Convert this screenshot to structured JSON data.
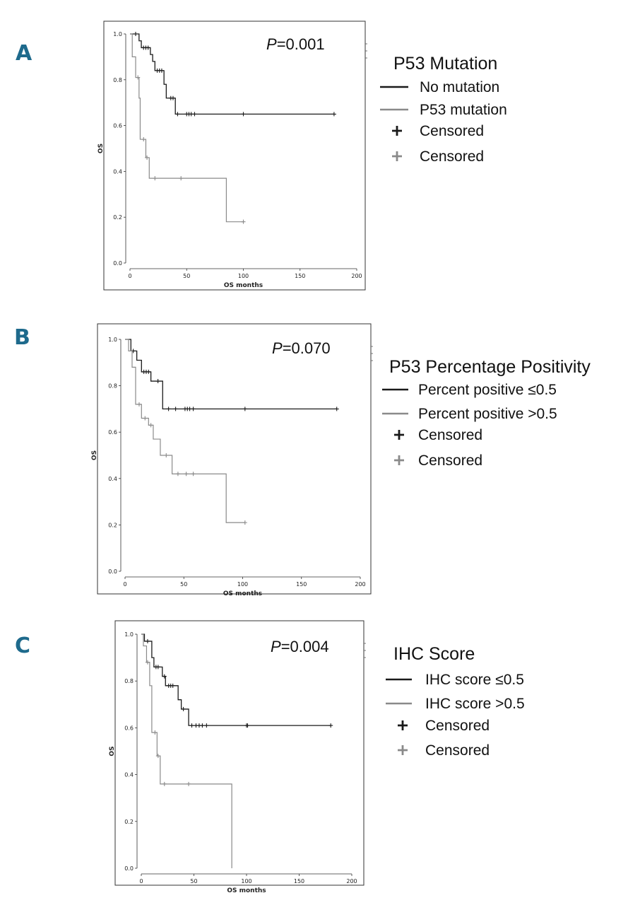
{
  "colors": {
    "dark": "#1a1a1a",
    "light": "#8a8a8a",
    "letter": "#1e6a8c"
  },
  "chart_data": [
    {
      "type": "line",
      "panel": "A",
      "title": "P53 Mutation",
      "p_value_prefix": "P",
      "p_value_rest": "=0.001",
      "xlabel": "OS months",
      "ylabel": "OS",
      "xlim": [
        0,
        200
      ],
      "ylim": [
        0,
        1
      ],
      "xticks": [
        0,
        50,
        100,
        150,
        200
      ],
      "yticks": [
        0.0,
        0.2,
        0.4,
        0.6,
        0.8,
        1.0
      ],
      "xtick_labels": [
        "0",
        "50",
        "100",
        "150",
        "200"
      ],
      "ytick_labels": [
        "0.0",
        "0.2",
        "0.4",
        "0.6",
        "0.8",
        "1.0"
      ],
      "legend": [
        {
          "label": "No mutation",
          "kind": "line",
          "color": "dark"
        },
        {
          "label": "P53 mutation",
          "kind": "line",
          "color": "light"
        },
        {
          "label": "Censored",
          "kind": "plus",
          "color": "dark"
        },
        {
          "label": "Censored",
          "kind": "plus",
          "color": "light"
        }
      ],
      "series": [
        {
          "name": "No mutation",
          "color": "dark",
          "steps": [
            [
              0,
              1.0
            ],
            [
              8,
              0.97
            ],
            [
              10,
              0.94
            ],
            [
              18,
              0.91
            ],
            [
              20,
              0.88
            ],
            [
              22,
              0.84
            ],
            [
              30,
              0.78
            ],
            [
              32,
              0.72
            ],
            [
              40,
              0.65
            ],
            [
              180,
              0.65
            ]
          ],
          "censored": [
            [
              5,
              1.0
            ],
            [
              12,
              0.94
            ],
            [
              14,
              0.94
            ],
            [
              16,
              0.94
            ],
            [
              24,
              0.84
            ],
            [
              26,
              0.84
            ],
            [
              28,
              0.84
            ],
            [
              36,
              0.72
            ],
            [
              38,
              0.72
            ],
            [
              42,
              0.65
            ],
            [
              50,
              0.65
            ],
            [
              52,
              0.65
            ],
            [
              54,
              0.65
            ],
            [
              57,
              0.65
            ],
            [
              100,
              0.65
            ],
            [
              180,
              0.65
            ]
          ]
        },
        {
          "name": "P53 mutation",
          "color": "light",
          "steps": [
            [
              0,
              1.0
            ],
            [
              2,
              0.9
            ],
            [
              5,
              0.81
            ],
            [
              8,
              0.72
            ],
            [
              9,
              0.54
            ],
            [
              14,
              0.46
            ],
            [
              17,
              0.37
            ],
            [
              84,
              0.37
            ],
            [
              85,
              0.18
            ],
            [
              100,
              0.18
            ]
          ],
          "censored": [
            [
              7,
              0.81
            ],
            [
              12,
              0.54
            ],
            [
              15,
              0.46
            ],
            [
              22,
              0.37
            ],
            [
              45,
              0.37
            ],
            [
              100,
              0.18
            ]
          ]
        }
      ]
    },
    {
      "type": "line",
      "panel": "B",
      "title": "P53 Percentage Positivity",
      "p_value_prefix": "P",
      "p_value_rest": "=0.070",
      "xlabel": "OS months",
      "ylabel": "OS",
      "xlim": [
        0,
        200
      ],
      "ylim": [
        0,
        1
      ],
      "xticks": [
        0,
        50,
        100,
        150,
        200
      ],
      "yticks": [
        0.0,
        0.2,
        0.4,
        0.6,
        0.8,
        1.0
      ],
      "xtick_labels": [
        "0",
        "50",
        "100",
        "150",
        "200"
      ],
      "ytick_labels": [
        "0.0",
        "0.2",
        "0.4",
        "0.6",
        "0.8",
        "1.0"
      ],
      "legend": [
        {
          "label": "Percent positive ≤0.5",
          "kind": "line",
          "color": "dark"
        },
        {
          "label": "Percent positive >0.5",
          "kind": "line",
          "color": "light"
        },
        {
          "label": "Censored",
          "kind": "plus",
          "color": "dark"
        },
        {
          "label": "Censored",
          "kind": "plus",
          "color": "light"
        }
      ],
      "series": [
        {
          "name": "Percent positive ≤0.5",
          "color": "dark",
          "steps": [
            [
              0,
              1.0
            ],
            [
              5,
              0.95
            ],
            [
              10,
              0.91
            ],
            [
              14,
              0.86
            ],
            [
              22,
              0.82
            ],
            [
              32,
              0.7
            ],
            [
              180,
              0.7
            ]
          ],
          "censored": [
            [
              7,
              0.95
            ],
            [
              16,
              0.86
            ],
            [
              18,
              0.86
            ],
            [
              20,
              0.86
            ],
            [
              28,
              0.82
            ],
            [
              37,
              0.7
            ],
            [
              43,
              0.7
            ],
            [
              51,
              0.7
            ],
            [
              53,
              0.7
            ],
            [
              55,
              0.7
            ],
            [
              58,
              0.7
            ],
            [
              102,
              0.7
            ],
            [
              180,
              0.7
            ]
          ]
        },
        {
          "name": "Percent positive >0.5",
          "color": "light",
          "steps": [
            [
              0,
              1.0
            ],
            [
              3,
              0.95
            ],
            [
              6,
              0.88
            ],
            [
              9,
              0.72
            ],
            [
              14,
              0.66
            ],
            [
              20,
              0.63
            ],
            [
              24,
              0.57
            ],
            [
              30,
              0.5
            ],
            [
              40,
              0.42
            ],
            [
              85,
              0.42
            ],
            [
              86,
              0.21
            ],
            [
              102,
              0.21
            ]
          ],
          "censored": [
            [
              12,
              0.72
            ],
            [
              17,
              0.66
            ],
            [
              22,
              0.63
            ],
            [
              35,
              0.5
            ],
            [
              45,
              0.42
            ],
            [
              52,
              0.42
            ],
            [
              58,
              0.42
            ],
            [
              102,
              0.21
            ]
          ]
        }
      ]
    },
    {
      "type": "line",
      "panel": "C",
      "title": "IHC Score",
      "p_value_prefix": "P",
      "p_value_rest": "=0.004",
      "xlabel": "OS months",
      "ylabel": "OS",
      "xlim": [
        0,
        200
      ],
      "ylim": [
        0,
        1
      ],
      "xticks": [
        0,
        50,
        100,
        150,
        200
      ],
      "yticks": [
        0.0,
        0.2,
        0.4,
        0.6,
        0.8,
        1.0
      ],
      "xtick_labels": [
        "0",
        "50",
        "100",
        "150",
        "200"
      ],
      "ytick_labels": [
        "0.0",
        "0.2",
        "0.4",
        "0.6",
        "0.8",
        "1.0"
      ],
      "legend": [
        {
          "label": "IHC score ≤0.5",
          "kind": "line",
          "color": "dark"
        },
        {
          "label": "IHC score >0.5",
          "kind": "line",
          "color": "light"
        },
        {
          "label": "Censored",
          "kind": "plus",
          "color": "dark"
        },
        {
          "label": "Censored",
          "kind": "plus",
          "color": "light"
        }
      ],
      "series": [
        {
          "name": "IHC score ≤0.5",
          "color": "dark",
          "steps": [
            [
              0,
              1.0
            ],
            [
              3,
              0.97
            ],
            [
              10,
              0.9
            ],
            [
              12,
              0.86
            ],
            [
              20,
              0.82
            ],
            [
              23,
              0.78
            ],
            [
              35,
              0.72
            ],
            [
              38,
              0.68
            ],
            [
              45,
              0.61
            ],
            [
              180,
              0.61
            ]
          ],
          "censored": [
            [
              6,
              0.97
            ],
            [
              14,
              0.86
            ],
            [
              16,
              0.86
            ],
            [
              22,
              0.82
            ],
            [
              26,
              0.78
            ],
            [
              28,
              0.78
            ],
            [
              30,
              0.78
            ],
            [
              40,
              0.68
            ],
            [
              48,
              0.61
            ],
            [
              52,
              0.61
            ],
            [
              55,
              0.61
            ],
            [
              58,
              0.61
            ],
            [
              62,
              0.61
            ],
            [
              100,
              0.61
            ],
            [
              101,
              0.61
            ],
            [
              180,
              0.61
            ]
          ]
        },
        {
          "name": "IHC score >0.5",
          "color": "light",
          "steps": [
            [
              0,
              1.0
            ],
            [
              2,
              0.95
            ],
            [
              5,
              0.88
            ],
            [
              8,
              0.78
            ],
            [
              10,
              0.58
            ],
            [
              15,
              0.48
            ],
            [
              18,
              0.36
            ],
            [
              85,
              0.36
            ],
            [
              86,
              0.0
            ]
          ],
          "censored": [
            [
              6,
              0.88
            ],
            [
              13,
              0.58
            ],
            [
              16,
              0.48
            ],
            [
              22,
              0.36
            ],
            [
              45,
              0.36
            ]
          ]
        }
      ]
    }
  ]
}
